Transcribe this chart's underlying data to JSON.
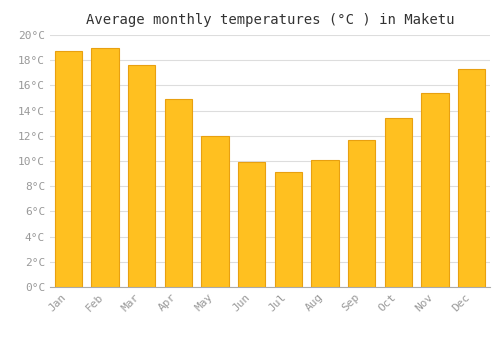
{
  "title": "Average monthly temperatures (°C ) in Maketu",
  "months": [
    "Jan",
    "Feb",
    "Mar",
    "Apr",
    "May",
    "Jun",
    "Jul",
    "Aug",
    "Sep",
    "Oct",
    "Nov",
    "Dec"
  ],
  "values": [
    18.7,
    19.0,
    17.6,
    14.9,
    12.0,
    9.9,
    9.1,
    10.1,
    11.7,
    13.4,
    15.4,
    17.3
  ],
  "bar_color": "#FFC020",
  "bar_edge_color": "#E8A010",
  "background_color": "#FFFFFF",
  "grid_color": "#DDDDDD",
  "ylim": [
    0,
    20
  ],
  "ytick_step": 2,
  "title_fontsize": 10,
  "tick_fontsize": 8,
  "tick_color": "#999999",
  "font_family": "monospace"
}
